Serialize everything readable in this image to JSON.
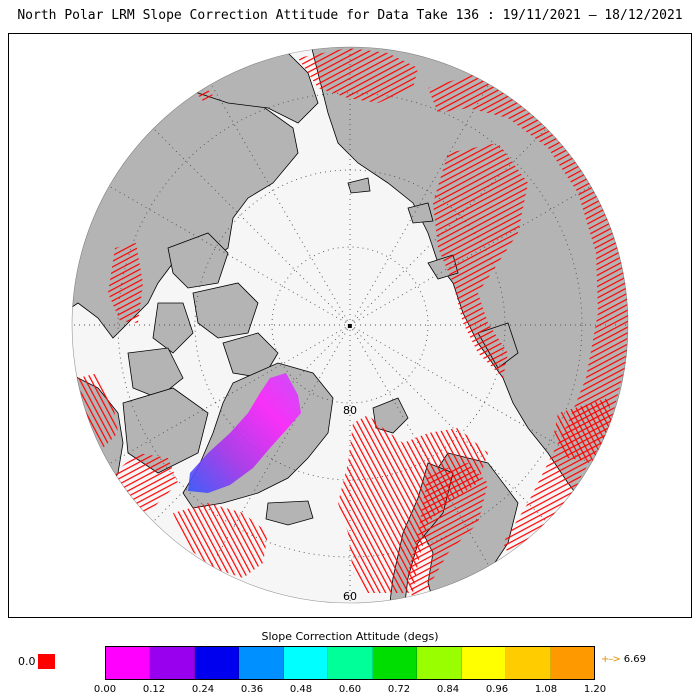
{
  "title": "North Polar LRM Slope Correction Attitude for Data Take 136 : 19/11/2021 – 18/12/2021",
  "map": {
    "latitude_labels": [
      "80",
      "60"
    ],
    "colors": {
      "ocean": "#f6f6f6",
      "land": "#b4b4b4",
      "outside": "#ffffff",
      "coast": "#000000",
      "grid": "#505050",
      "saturated_track": "#ff0000"
    }
  },
  "legend": {
    "title": "Slope Correction Attitude (degs)",
    "nodata_label": "0.0",
    "nodata_color": "#ff0000",
    "colors": [
      "#ff00ff",
      "#9900ee",
      "#0000ee",
      "#0090ff",
      "#00ffff",
      "#00ff99",
      "#00dd00",
      "#99ff00",
      "#ffff00",
      "#ffcc00",
      "#ff9900"
    ],
    "ticks": [
      "0.00",
      "0.12",
      "0.24",
      "0.36",
      "0.48",
      "0.60",
      "0.72",
      "0.84",
      "0.96",
      "1.08",
      "1.20"
    ],
    "overflow_arrow": "→",
    "overflow_value": "6.69"
  }
}
